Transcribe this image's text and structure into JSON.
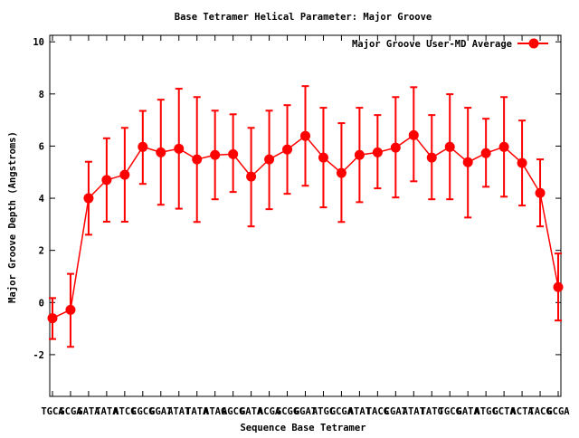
{
  "chart_data": {
    "type": "line",
    "title": "Base Tetramer Helical Parameter: Major Groove",
    "xlabel": "Sequence Base Tetramer",
    "ylabel": "Major Groove Depth (Angstroms)",
    "ylim": [
      -3.6,
      10.25
    ],
    "xlim": [
      0.85,
      29.15
    ],
    "yticks": [
      -2,
      0,
      2,
      4,
      6,
      8,
      10
    ],
    "grid": false,
    "legend_position": "top-right",
    "categories": [
      "TGCA",
      "GCGA",
      "GATA",
      "TATA",
      "ATCG",
      "CGCG",
      "GGAT",
      "ATAT",
      "TATA",
      "ATAG",
      "AGCG",
      "GATA",
      "ACGA",
      "GCGG",
      "GGAT",
      "ATGC",
      "GCGA",
      "ATAT",
      "TACG",
      "CGAT",
      "ATAT",
      "TATG",
      "TGCG",
      "GATA",
      "ATGC",
      "GCTA",
      "ACTA",
      "TACG",
      "GCGA"
    ],
    "series": [
      {
        "name": "Major Groove User-MD Average",
        "color": "#ff0000",
        "values": [
          -0.6,
          -0.28,
          4.0,
          4.7,
          4.9,
          5.97,
          5.76,
          5.9,
          5.49,
          5.66,
          5.69,
          4.83,
          5.49,
          5.87,
          6.39,
          5.56,
          4.97,
          5.66,
          5.76,
          5.94,
          6.42,
          5.56,
          5.97,
          5.38,
          5.73,
          5.97,
          5.35,
          4.2,
          0.59
        ],
        "err_high": [
          0.17,
          1.1,
          5.4,
          6.3,
          6.7,
          7.35,
          7.78,
          8.2,
          7.88,
          7.36,
          7.22,
          6.7,
          7.36,
          7.57,
          8.3,
          7.47,
          6.88,
          7.47,
          7.19,
          7.88,
          8.26,
          7.19,
          7.99,
          7.47,
          7.05,
          7.88,
          6.98,
          5.49,
          1.88
        ],
        "err_low": [
          -1.4,
          -1.7,
          2.6,
          3.1,
          3.1,
          4.55,
          3.75,
          3.6,
          3.09,
          3.96,
          4.24,
          2.92,
          3.58,
          4.17,
          4.48,
          3.65,
          3.09,
          3.85,
          4.38,
          4.03,
          4.65,
          3.96,
          3.96,
          3.26,
          4.44,
          4.06,
          3.72,
          2.92,
          -0.69
        ]
      }
    ]
  }
}
